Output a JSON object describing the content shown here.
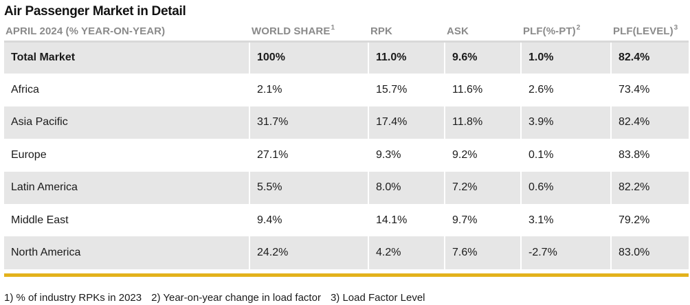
{
  "title": "Air Passenger Market in Detail",
  "header": {
    "region": "APRIL 2024 (% YEAR-ON-YEAR)",
    "world_share": "WORLD SHARE",
    "world_share_sup": "1",
    "rpk": "RPK",
    "ask": "ASK",
    "plf_pt": "PLF(%-PT)",
    "plf_pt_sup": "2",
    "plf_level": "PLF(LEVEL)",
    "plf_level_sup": "3"
  },
  "rows": [
    {
      "region": "Total Market",
      "world_share": "100%",
      "rpk": "11.0%",
      "ask": "9.6%",
      "plf_pt": "1.0%",
      "plf_level": "82.4%"
    },
    {
      "region": "Africa",
      "world_share": "2.1%",
      "rpk": "15.7%",
      "ask": "11.6%",
      "plf_pt": "2.6%",
      "plf_level": "73.4%"
    },
    {
      "region": "Asia Pacific",
      "world_share": "31.7%",
      "rpk": "17.4%",
      "ask": "11.8%",
      "plf_pt": "3.9%",
      "plf_level": "82.4%"
    },
    {
      "region": "Europe",
      "world_share": "27.1%",
      "rpk": "9.3%",
      "ask": "9.2%",
      "plf_pt": "0.1%",
      "plf_level": "83.8%"
    },
    {
      "region": "Latin America",
      "world_share": "5.5%",
      "rpk": "8.0%",
      "ask": "7.2%",
      "plf_pt": "0.6%",
      "plf_level": "82.2%"
    },
    {
      "region": "Middle East",
      "world_share": "9.4%",
      "rpk": "14.1%",
      "ask": "9.7%",
      "plf_pt": "3.1%",
      "plf_level": "79.2%"
    },
    {
      "region": "North America",
      "world_share": "24.2%",
      "rpk": "4.2%",
      "ask": "7.6%",
      "plf_pt": "-2.7%",
      "plf_level": "83.0%"
    }
  ],
  "footnotes": {
    "note1": "1) % of industry RPKs in 2023",
    "note2": "2) Year-on-year change in load factor",
    "note3": "3) Load Factor Level"
  },
  "colors": {
    "shaded_row": "#e6e6e6",
    "header_text": "#8a8a8a",
    "accent_rule": "#e3b21c"
  }
}
